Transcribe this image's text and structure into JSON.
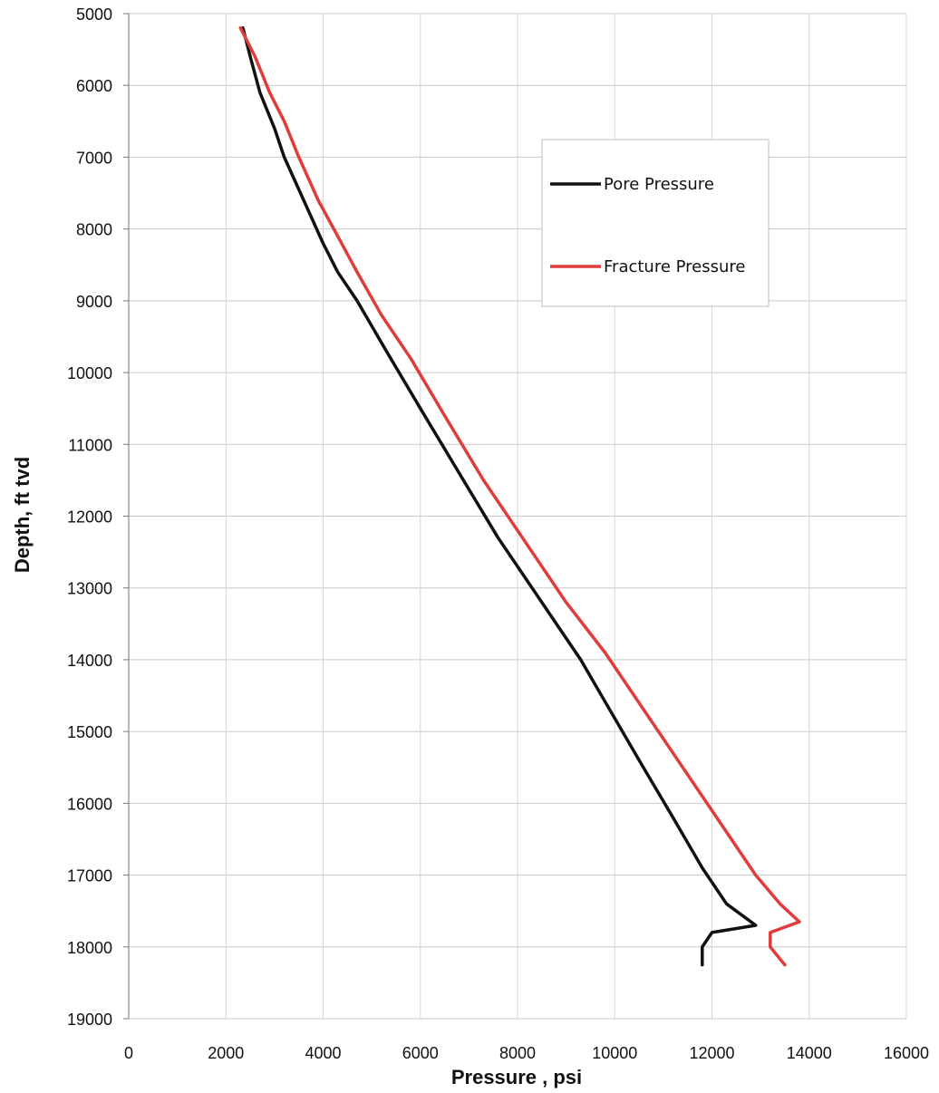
{
  "chart_data": {
    "type": "line",
    "title": "",
    "xlabel": "Pressure , psi",
    "ylabel": "Depth, ft tvd",
    "xlim": [
      0,
      16000
    ],
    "ylim": [
      5000,
      19000
    ],
    "y_inverted": true,
    "x_ticks": [
      0,
      2000,
      4000,
      6000,
      8000,
      10000,
      12000,
      14000,
      16000
    ],
    "y_ticks": [
      5000,
      6000,
      7000,
      8000,
      9000,
      10000,
      11000,
      12000,
      13000,
      14000,
      15000,
      16000,
      17000,
      18000,
      19000
    ],
    "grid": true,
    "legend_position": "upper-right",
    "series": [
      {
        "name": "Pore Pressure",
        "color": "#111111",
        "points": [
          [
            2350,
            5200
          ],
          [
            2500,
            5600
          ],
          [
            2700,
            6100
          ],
          [
            3000,
            6600
          ],
          [
            3200,
            7000
          ],
          [
            3600,
            7600
          ],
          [
            4000,
            8200
          ],
          [
            4300,
            8600
          ],
          [
            4700,
            9000
          ],
          [
            5300,
            9700
          ],
          [
            6000,
            10500
          ],
          [
            6800,
            11400
          ],
          [
            7600,
            12300
          ],
          [
            8500,
            13200
          ],
          [
            9300,
            14000
          ],
          [
            9900,
            14700
          ],
          [
            10500,
            15400
          ],
          [
            11200,
            16200
          ],
          [
            11800,
            16900
          ],
          [
            12300,
            17400
          ],
          [
            12900,
            17700
          ],
          [
            12000,
            17800
          ],
          [
            11800,
            18000
          ],
          [
            11800,
            18250
          ]
        ]
      },
      {
        "name": "Fracture Pressure",
        "color": "#e03c3c",
        "points": [
          [
            2300,
            5200
          ],
          [
            2600,
            5600
          ],
          [
            2900,
            6100
          ],
          [
            3200,
            6500
          ],
          [
            3500,
            7000
          ],
          [
            3900,
            7600
          ],
          [
            4300,
            8100
          ],
          [
            4700,
            8600
          ],
          [
            5200,
            9200
          ],
          [
            5800,
            9800
          ],
          [
            6500,
            10600
          ],
          [
            7300,
            11500
          ],
          [
            8100,
            12300
          ],
          [
            9000,
            13200
          ],
          [
            9800,
            13900
          ],
          [
            10600,
            14700
          ],
          [
            11400,
            15500
          ],
          [
            12200,
            16300
          ],
          [
            12900,
            17000
          ],
          [
            13400,
            17400
          ],
          [
            13800,
            17650
          ],
          [
            13200,
            17800
          ],
          [
            13200,
            18000
          ],
          [
            13500,
            18250
          ]
        ]
      }
    ]
  }
}
